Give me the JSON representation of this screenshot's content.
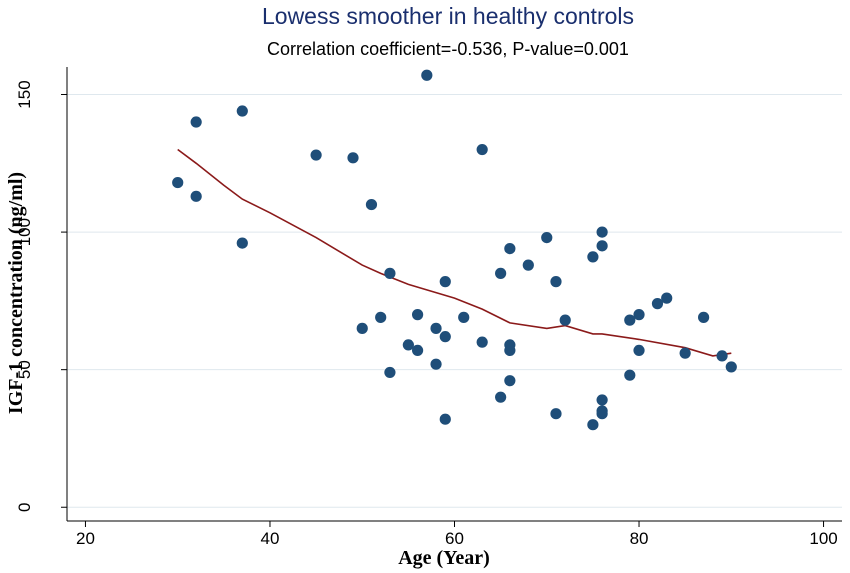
{
  "chart_data": {
    "type": "scatter",
    "title": "Lowess smoother in healthy controls",
    "subtitle": "Correlation coefficient=-0.536, P-value=0.001",
    "xlabel": "Age (Year)",
    "ylabel": "IGF-1 concentration (ng/ml)",
    "xlim": [
      18,
      102
    ],
    "ylim": [
      -5,
      160
    ],
    "xticks": [
      "20",
      "40",
      "60",
      "80",
      "100"
    ],
    "yticks": [
      "0",
      "50",
      "100",
      "150"
    ],
    "grid": true,
    "legend": "none",
    "colors": {
      "points": "#1f4e79",
      "smoother": "#8b1a1a",
      "grid": "#dfe8ee",
      "title": "#1a2f6e"
    },
    "points": [
      [
        30,
        118
      ],
      [
        32,
        140
      ],
      [
        32,
        113
      ],
      [
        37,
        144
      ],
      [
        37,
        96
      ],
      [
        45,
        128
      ],
      [
        49,
        127
      ],
      [
        50,
        65
      ],
      [
        51,
        110
      ],
      [
        52,
        69
      ],
      [
        53,
        85
      ],
      [
        53,
        49
      ],
      [
        55,
        59
      ],
      [
        56,
        70
      ],
      [
        56,
        57
      ],
      [
        57,
        157
      ],
      [
        58,
        65
      ],
      [
        58,
        52
      ],
      [
        59,
        82
      ],
      [
        59,
        62
      ],
      [
        59,
        32
      ],
      [
        61,
        69
      ],
      [
        63,
        130
      ],
      [
        63,
        60
      ],
      [
        65,
        85
      ],
      [
        65,
        40
      ],
      [
        66,
        94
      ],
      [
        66,
        59
      ],
      [
        66,
        57
      ],
      [
        66,
        46
      ],
      [
        68,
        88
      ],
      [
        70,
        98
      ],
      [
        71,
        82
      ],
      [
        71,
        34
      ],
      [
        72,
        68
      ],
      [
        75,
        91
      ],
      [
        75,
        30
      ],
      [
        76,
        100
      ],
      [
        76,
        95
      ],
      [
        76,
        39
      ],
      [
        76,
        35
      ],
      [
        76,
        34
      ],
      [
        79,
        68
      ],
      [
        79,
        48
      ],
      [
        80,
        70
      ],
      [
        80,
        57
      ],
      [
        82,
        74
      ],
      [
        83,
        76
      ],
      [
        85,
        56
      ],
      [
        87,
        69
      ],
      [
        89,
        55
      ],
      [
        90,
        51
      ]
    ],
    "smoother": {
      "x": [
        30,
        32,
        35,
        37,
        40,
        45,
        50,
        52,
        55,
        57,
        60,
        63,
        66,
        70,
        72,
        75,
        76,
        80,
        85,
        88,
        90
      ],
      "y": [
        130,
        125,
        117,
        112,
        107,
        98,
        88,
        85,
        81,
        79,
        76,
        72,
        67,
        65,
        66,
        63,
        63,
        61,
        58,
        55,
        56
      ]
    }
  }
}
